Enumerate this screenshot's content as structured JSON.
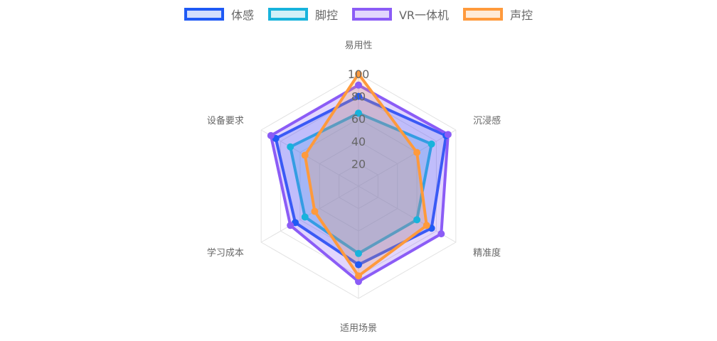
{
  "chart_data": {
    "type": "radar",
    "categories": [
      "易用性",
      "沉浸感",
      "精准度",
      "适用场景",
      "学习成本",
      "设备要求"
    ],
    "r_ticks": [
      20,
      40,
      60,
      80,
      100
    ],
    "rlim": [
      0,
      100
    ],
    "series": [
      {
        "name": "体感",
        "color": "#1f5af5",
        "fill": "rgba(31,90,245,0.20)",
        "values": [
          80,
          90,
          75,
          70,
          65,
          85
        ]
      },
      {
        "name": "脚控",
        "color": "#17b3dc",
        "fill": "rgba(23,179,220,0.20)",
        "values": [
          65,
          75,
          60,
          60,
          55,
          70
        ]
      },
      {
        "name": "VR一体机",
        "color": "#8b5cf6",
        "fill": "rgba(139,92,246,0.25)",
        "values": [
          90,
          92,
          85,
          85,
          70,
          90
        ]
      },
      {
        "name": "声控",
        "color": "#ff9a3c",
        "fill": "rgba(255,154,60,0.20)",
        "values": [
          100,
          60,
          70,
          80,
          45,
          55
        ]
      }
    ]
  }
}
